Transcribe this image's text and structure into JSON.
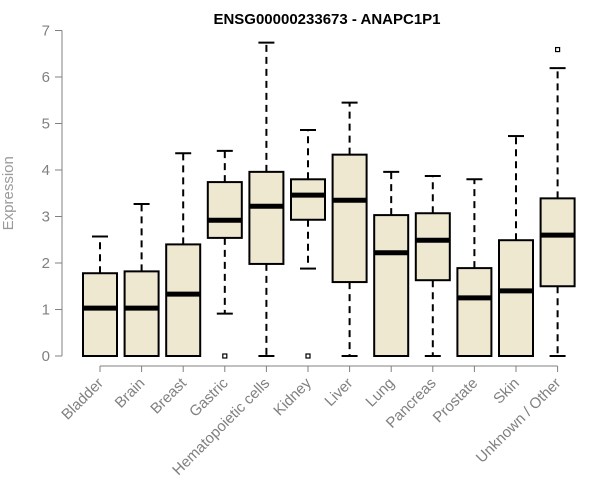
{
  "chart_data": {
    "type": "boxplot",
    "title": "ENSG00000233673 - ANAPC1P1",
    "xlabel": "",
    "ylabel": "Expression",
    "ylim": [
      0,
      7
    ],
    "yticks": [
      0,
      1,
      2,
      3,
      4,
      5,
      6,
      7
    ],
    "categories": [
      "Bladder",
      "Brain",
      "Breast",
      "Gastric",
      "Hematopoietic cells",
      "Kidney",
      "Liver",
      "Lung",
      "Pancreas",
      "Prostate",
      "Skin",
      "Unknown / Other"
    ],
    "series": [
      {
        "name": "Bladder",
        "whisker_low": 0,
        "q1": 0,
        "median": 1.03,
        "q3": 1.78,
        "whisker_high": 2.57,
        "outliers": []
      },
      {
        "name": "Brain",
        "whisker_low": 0,
        "q1": 0,
        "median": 1.03,
        "q3": 1.82,
        "whisker_high": 3.27,
        "outliers": []
      },
      {
        "name": "Breast",
        "whisker_low": 0,
        "q1": 0,
        "median": 1.33,
        "q3": 2.4,
        "whisker_high": 4.36,
        "outliers": []
      },
      {
        "name": "Gastric",
        "whisker_low": 0.91,
        "q1": 2.54,
        "median": 2.92,
        "q3": 3.74,
        "whisker_high": 4.41,
        "outliers": [
          0
        ]
      },
      {
        "name": "Hematopoietic cells",
        "whisker_low": 0,
        "q1": 1.98,
        "median": 3.22,
        "q3": 3.96,
        "whisker_high": 6.74,
        "outliers": []
      },
      {
        "name": "Kidney",
        "whisker_low": 1.88,
        "q1": 2.93,
        "median": 3.46,
        "q3": 3.8,
        "whisker_high": 4.86,
        "outliers": [
          0
        ]
      },
      {
        "name": "Liver",
        "whisker_low": 0,
        "q1": 1.59,
        "median": 3.35,
        "q3": 4.33,
        "whisker_high": 5.45,
        "outliers": []
      },
      {
        "name": "Lung",
        "whisker_low": 0,
        "q1": 0,
        "median": 2.22,
        "q3": 3.03,
        "whisker_high": 3.96,
        "outliers": []
      },
      {
        "name": "Pancreas",
        "whisker_low": 0,
        "q1": 1.63,
        "median": 2.49,
        "q3": 3.07,
        "whisker_high": 3.87,
        "outliers": []
      },
      {
        "name": "Prostate",
        "whisker_low": 0,
        "q1": 0,
        "median": 1.25,
        "q3": 1.89,
        "whisker_high": 3.8,
        "outliers": []
      },
      {
        "name": "Skin",
        "whisker_low": 0,
        "q1": 0,
        "median": 1.4,
        "q3": 2.49,
        "whisker_high": 4.73,
        "outliers": []
      },
      {
        "name": "Unknown / Other",
        "whisker_low": 0,
        "q1": 1.5,
        "median": 2.6,
        "q3": 3.39,
        "whisker_high": 6.19,
        "outliers": [
          6.59
        ]
      }
    ],
    "colors": {
      "box_fill": "#efe8d1",
      "box_stroke": "#000000",
      "axis": "#808080",
      "tick_label": "#808080",
      "axis_title": "#9a9a9a"
    }
  }
}
